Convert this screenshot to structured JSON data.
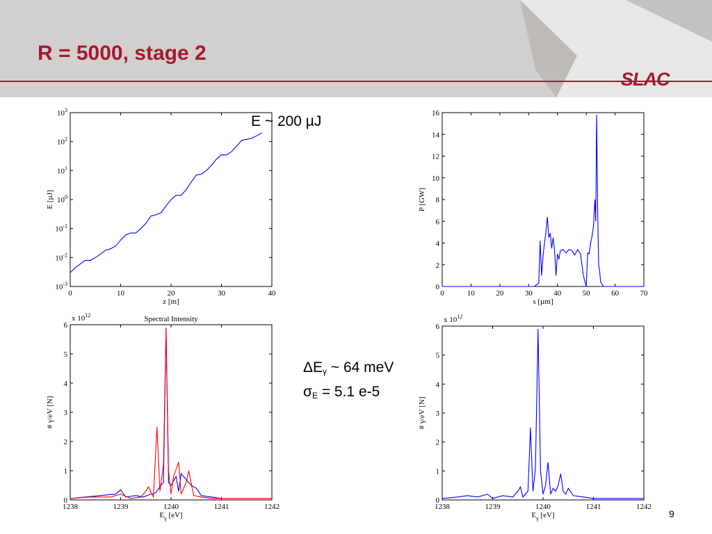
{
  "slide": {
    "title": "R = 5000, stage 2",
    "logo": "SLAC",
    "page_number": "9",
    "annotation_energy": "E ~ 200 µJ",
    "annotation_dE_prefix": "ΔE",
    "annotation_dE_sub": "γ",
    "annotation_dE_suffix": " ~ 64 meV",
    "annotation_sigma_prefix": "σ",
    "annotation_sigma_sub": "E",
    "annotation_sigma_suffix": " = 5.1 e-5",
    "colors": {
      "title": "#a6192e",
      "header_band": "#d2d0cf",
      "rule": "#a6192e"
    }
  },
  "chart_data": [
    {
      "type": "line",
      "title": "",
      "xlabel": "z [m]",
      "ylabel": "E [µJ]",
      "xlim": [
        0,
        40
      ],
      "ylim": [
        0.001,
        1000
      ],
      "yscale": "log",
      "xticks": [
        "0",
        "10",
        "20",
        "30",
        "40"
      ],
      "yticks": [
        {
          "base": "10",
          "exp": "-3"
        },
        {
          "base": "10",
          "exp": "-2"
        },
        {
          "base": "10",
          "exp": "-1"
        },
        {
          "base": "10",
          "exp": "0"
        },
        {
          "base": "10",
          "exp": "1"
        },
        {
          "base": "10",
          "exp": "2"
        },
        {
          "base": "10",
          "exp": "3"
        }
      ],
      "grid": false,
      "series": [
        {
          "color": "#0000ff",
          "x": [
            0,
            1,
            2,
            3,
            4,
            5,
            6,
            7,
            8,
            9,
            10,
            11,
            12,
            13,
            14,
            15,
            16,
            17,
            18,
            19,
            20,
            21,
            22,
            23,
            24,
            25,
            26,
            27,
            28,
            29,
            30,
            31,
            32,
            33,
            34,
            35,
            36,
            37,
            38
          ],
          "y": [
            0.003,
            0.0045,
            0.006,
            0.008,
            0.008,
            0.01,
            0.013,
            0.018,
            0.02,
            0.025,
            0.04,
            0.06,
            0.07,
            0.07,
            0.1,
            0.15,
            0.27,
            0.3,
            0.35,
            0.6,
            1.0,
            1.4,
            1.4,
            2.2,
            4.0,
            7.0,
            7.5,
            10.0,
            15.0,
            25.0,
            35.0,
            35.0,
            45.0,
            70.0,
            110.0,
            120.0,
            130.0,
            160.0,
            200.0
          ]
        }
      ]
    },
    {
      "type": "line",
      "title": "",
      "xlabel": "s [µm]",
      "ylabel": "P [GW]",
      "xlim": [
        0,
        70
      ],
      "ylim": [
        0,
        16
      ],
      "xticks": [
        "0",
        "10",
        "20",
        "30",
        "40",
        "50",
        "60",
        "70"
      ],
      "yticks": [
        "0",
        "2",
        "4",
        "6",
        "8",
        "10",
        "12",
        "14",
        "16"
      ],
      "grid": false,
      "series": [
        {
          "color": "#0000ff",
          "x": [
            0,
            32,
            33.5,
            34,
            34.5,
            35,
            35.5,
            36,
            36.5,
            37,
            37.5,
            38,
            38.5,
            39,
            39.5,
            40,
            40.5,
            41,
            42,
            43,
            44,
            45,
            46,
            47,
            48,
            49,
            50,
            50.5,
            51,
            51.5,
            52,
            52.5,
            53,
            53.3,
            53.6,
            54,
            54.3,
            54.6,
            55,
            56,
            70
          ],
          "y": [
            0,
            0,
            0.3,
            4.2,
            1.0,
            2.8,
            4.0,
            5.0,
            6.4,
            4.5,
            4.9,
            3.5,
            4.5,
            3.3,
            1.0,
            3.0,
            2.5,
            3.3,
            3.4,
            3.1,
            3.4,
            3.3,
            2.9,
            3.4,
            3.0,
            1.0,
            0,
            3.1,
            3.0,
            4.0,
            4.6,
            5.5,
            8.0,
            6.0,
            15.8,
            6.5,
            2.0,
            1.5,
            0.4,
            0,
            0
          ]
        }
      ]
    },
    {
      "type": "line",
      "title": "Spectral Intensity",
      "xlabel": "E_γ [eV]",
      "ylabel": "# γ/eV [N]",
      "y_multiplier": "x 10^12",
      "xlim": [
        1238,
        1242
      ],
      "ylim": [
        0,
        6
      ],
      "xticks": [
        "1238",
        "1239",
        "1240",
        "1241",
        "1242"
      ],
      "yticks": [
        "0",
        "1",
        "2",
        "3",
        "4",
        "5",
        "6"
      ],
      "grid": false,
      "series": [
        {
          "color": "#0000ff",
          "x": [
            1238.0,
            1238.3,
            1238.6,
            1238.9,
            1239.0,
            1239.1,
            1239.3,
            1239.45,
            1239.6,
            1239.7,
            1239.8,
            1239.85,
            1239.9,
            1239.95,
            1240.0,
            1240.1,
            1240.15,
            1240.2,
            1240.3,
            1240.4,
            1240.5,
            1240.6,
            1240.8,
            1241.0,
            1241.5,
            1242.0
          ],
          "y": [
            0.05,
            0.1,
            0.15,
            0.2,
            0.35,
            0.1,
            0.15,
            0.1,
            0.2,
            0.25,
            0.5,
            0.6,
            5.85,
            0.6,
            0.5,
            0.8,
            0.3,
            0.9,
            0.7,
            0.5,
            0.4,
            0.15,
            0.1,
            0.05,
            0.05,
            0.05
          ]
        },
        {
          "color": "#ff0000",
          "x": [
            1238.0,
            1238.4,
            1238.8,
            1239.0,
            1239.2,
            1239.4,
            1239.5,
            1239.55,
            1239.65,
            1239.72,
            1239.78,
            1239.85,
            1239.9,
            1239.95,
            1240.0,
            1240.05,
            1240.15,
            1240.2,
            1240.3,
            1240.35,
            1240.45,
            1240.6,
            1240.8,
            1241.0,
            1241.5,
            1242.0
          ],
          "y": [
            0.05,
            0.1,
            0.1,
            0.2,
            0.05,
            0.1,
            0.3,
            0.45,
            0.1,
            2.5,
            0.3,
            1.2,
            5.9,
            1.0,
            0.2,
            0.8,
            1.3,
            0.2,
            0.6,
            1.0,
            0.15,
            0.1,
            0.05,
            0.05,
            0.05,
            0.05
          ]
        }
      ]
    },
    {
      "type": "line",
      "title": "",
      "xlabel": "E_γ [eV]",
      "ylabel": "# γ/eV [N]",
      "y_multiplier": "x 10^12",
      "xlim": [
        1238,
        1242
      ],
      "ylim": [
        0,
        6
      ],
      "xticks": [
        "1238",
        "1239",
        "1240",
        "1241",
        "1242"
      ],
      "yticks": [
        "0",
        "1",
        "2",
        "3",
        "4",
        "5",
        "6"
      ],
      "grid": false,
      "series": [
        {
          "color": "#0000ff",
          "x": [
            1238.0,
            1238.3,
            1238.5,
            1238.7,
            1238.9,
            1239.0,
            1239.2,
            1239.4,
            1239.5,
            1239.55,
            1239.6,
            1239.7,
            1239.75,
            1239.8,
            1239.85,
            1239.9,
            1239.95,
            1240.0,
            1240.05,
            1240.1,
            1240.15,
            1240.2,
            1240.25,
            1240.3,
            1240.35,
            1240.4,
            1240.45,
            1240.5,
            1240.6,
            1240.8,
            1241.0,
            1241.5,
            1242.0
          ],
          "y": [
            0.05,
            0.1,
            0.15,
            0.1,
            0.2,
            0.05,
            0.15,
            0.1,
            0.3,
            0.45,
            0.1,
            0.3,
            2.5,
            0.3,
            1.1,
            5.9,
            1.0,
            0.2,
            0.5,
            1.3,
            0.2,
            0.4,
            0.3,
            0.5,
            0.9,
            0.3,
            0.2,
            0.4,
            0.15,
            0.1,
            0.05,
            0.05,
            0.05
          ]
        }
      ]
    }
  ]
}
